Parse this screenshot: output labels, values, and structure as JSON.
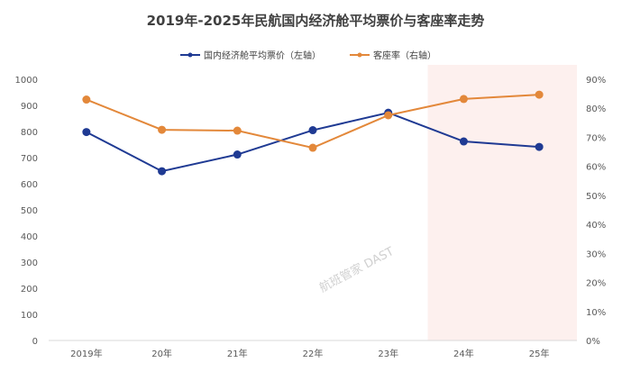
{
  "chart_data": {
    "type": "line",
    "title": "2019年-2025年民航国内经济舱平均票价与客座率走势",
    "categories": [
      "2019年",
      "20年",
      "21年",
      "22年",
      "23年",
      "24年",
      "25年"
    ],
    "series": [
      {
        "name": "国内经济舱平均票价（左轴）",
        "axis": "left",
        "color": "#1f3a93",
        "values": [
          798,
          648,
          712,
          805,
          872,
          762,
          741
        ]
      },
      {
        "name": "客座率（右轴）",
        "axis": "right",
        "color": "#e3883a",
        "values": [
          83.0,
          72.6,
          72.3,
          66.4,
          77.6,
          83.2,
          84.7
        ]
      }
    ],
    "left_axis": {
      "ylim": [
        0,
        1000
      ],
      "ticks": [
        "0",
        "100",
        "200",
        "300",
        "400",
        "500",
        "600",
        "700",
        "800",
        "900",
        "1000"
      ]
    },
    "right_axis": {
      "ylim": [
        0,
        90
      ],
      "ticks": [
        "0%",
        "10%",
        "20%",
        "30%",
        "40%",
        "50%",
        "60%",
        "70%",
        "80%",
        "90%"
      ]
    },
    "highlight": {
      "categories": [
        "24年",
        "25年"
      ],
      "color": "#fdf0ee"
    },
    "legend_position": "top",
    "grid": false,
    "watermark": "航班管家 DAST"
  }
}
